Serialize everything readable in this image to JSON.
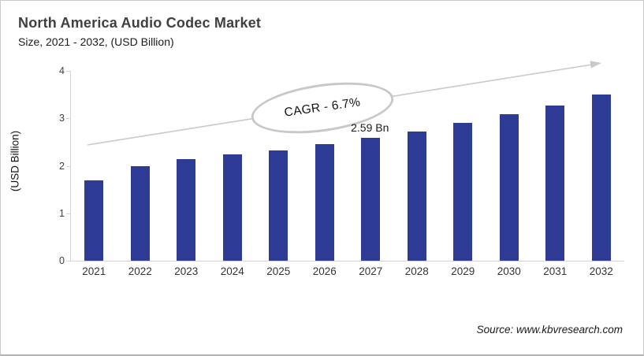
{
  "header": {
    "title": "North America Audio Codec Market",
    "subtitle": "Size, 2021 - 2032, (USD Billion)"
  },
  "footer": {
    "source": "Source: www.kbvresearch.com"
  },
  "chart_data": {
    "type": "bar",
    "title": "North America Audio Codec Market Size, 2021 - 2032, (USD Billion)",
    "categories": [
      "2021",
      "2022",
      "2023",
      "2024",
      "2025",
      "2026",
      "2027",
      "2028",
      "2029",
      "2030",
      "2031",
      "2032"
    ],
    "values": [
      1.7,
      2.0,
      2.14,
      2.24,
      2.33,
      2.45,
      2.59,
      2.73,
      2.9,
      3.08,
      3.27,
      3.5
    ],
    "xlabel": "",
    "ylabel": "(USD Billion)",
    "ylim": [
      0,
      4
    ],
    "yticks": [
      0,
      1,
      2,
      3,
      4
    ],
    "grid": "off",
    "legend": "none",
    "bar_color": "#2d3b95",
    "axis_color": "#d2d5d8",
    "arrow_color": "#c6cacd",
    "annotations": {
      "cagr_label": "CAGR - 6.7%",
      "data_label_text": "2.59 Bn",
      "data_label_category": "2027"
    }
  }
}
